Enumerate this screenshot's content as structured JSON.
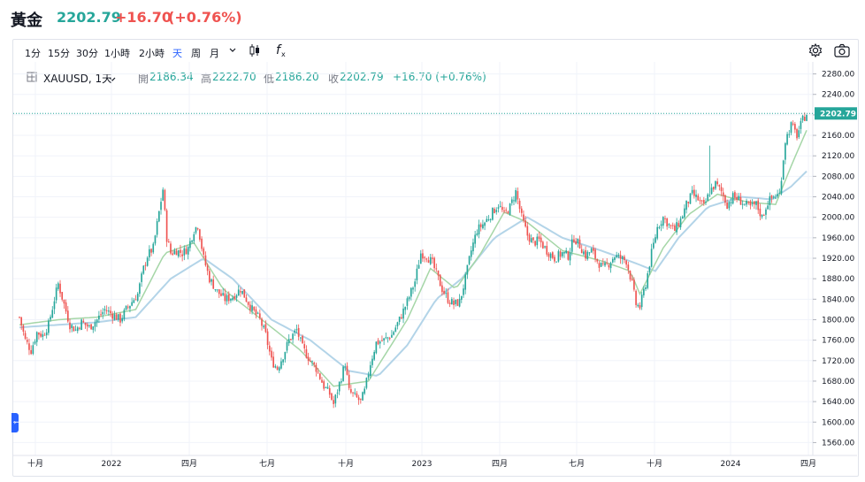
{
  "header": {
    "title": "黃金",
    "price": "2202.79",
    "change": "+16.70",
    "change_pct": "(+0.76%)"
  },
  "toolbar": {
    "intervals": [
      "1分",
      "15分",
      "30分",
      "1小時",
      "2小時",
      "天",
      "周",
      "月"
    ],
    "active_interval": "天",
    "dropdown_icon": "chevron-down-icon",
    "chart_type_icon": "candlestick-icon",
    "indicators_icon": "function-icon",
    "settings_icon": "gear-icon",
    "screenshot_icon": "camera-icon"
  },
  "legend": {
    "symbol": "XAUUSD, 1天",
    "open_label": "開",
    "open": "2186.34",
    "high_label": "高",
    "high": "2222.70",
    "low_label": "低",
    "low": "2186.20",
    "close_label": "收",
    "close": "2202.79",
    "change": "+16.70 (+0.76%)"
  },
  "colors": {
    "up": "#26a69a",
    "down": "#ef5350",
    "ma_fast": "#a5d6a7",
    "ma_slow": "#b3d4e8",
    "last_price_bg": "#26a69a",
    "grid": "#f0f3fa"
  },
  "chart_data": {
    "type": "candlestick",
    "symbol": "XAUUSD",
    "interval": "1天",
    "ylim": [
      1540,
      2300
    ],
    "y_ticks": [
      1560,
      1600,
      1640,
      1680,
      1720,
      1760,
      1800,
      1840,
      1880,
      1920,
      1960,
      2000,
      2040,
      2080,
      2120,
      2160,
      2200,
      2240,
      2280
    ],
    "x_ticks": [
      "十月",
      "2022",
      "四月",
      "七月",
      "十月",
      "2023",
      "四月",
      "七月",
      "十月",
      "2024",
      "四月"
    ],
    "last_price": 2202.79,
    "last_price_label": "2202.79",
    "grid": true,
    "close_path": [
      [
        0,
        1805
      ],
      [
        3,
        1760
      ],
      [
        6,
        1740
      ],
      [
        9,
        1775
      ],
      [
        12,
        1770
      ],
      [
        15,
        1790
      ],
      [
        18,
        1840
      ],
      [
        20,
        1870
      ],
      [
        23,
        1830
      ],
      [
        26,
        1790
      ],
      [
        29,
        1780
      ],
      [
        32,
        1795
      ],
      [
        36,
        1785
      ],
      [
        40,
        1800
      ],
      [
        44,
        1820
      ],
      [
        48,
        1810
      ],
      [
        52,
        1800
      ],
      [
        55,
        1820
      ],
      [
        58,
        1835
      ],
      [
        61,
        1850
      ],
      [
        64,
        1900
      ],
      [
        66,
        1925
      ],
      [
        69,
        1940
      ],
      [
        72,
        2010
      ],
      [
        74,
        2055
      ],
      [
        76,
        1960
      ],
      [
        78,
        1930
      ],
      [
        81,
        1935
      ],
      [
        84,
        1930
      ],
      [
        87,
        1940
      ],
      [
        90,
        1975
      ],
      [
        92,
        1985
      ],
      [
        95,
        1920
      ],
      [
        98,
        1880
      ],
      [
        102,
        1855
      ],
      [
        106,
        1840
      ],
      [
        110,
        1845
      ],
      [
        114,
        1860
      ],
      [
        117,
        1840
      ],
      [
        120,
        1820
      ],
      [
        124,
        1800
      ],
      [
        127,
        1770
      ],
      [
        130,
        1720
      ],
      [
        133,
        1705
      ],
      [
        136,
        1730
      ],
      [
        139,
        1760
      ],
      [
        143,
        1780
      ],
      [
        146,
        1745
      ],
      [
        150,
        1720
      ],
      [
        153,
        1705
      ],
      [
        157,
        1670
      ],
      [
        160,
        1655
      ],
      [
        162,
        1635
      ],
      [
        165,
        1675
      ],
      [
        168,
        1715
      ],
      [
        170,
        1660
      ],
      [
        173,
        1650
      ],
      [
        176,
        1640
      ],
      [
        178,
        1660
      ],
      [
        181,
        1715
      ],
      [
        184,
        1755
      ],
      [
        188,
        1760
      ],
      [
        192,
        1770
      ],
      [
        196,
        1800
      ],
      [
        200,
        1835
      ],
      [
        204,
        1875
      ],
      [
        207,
        1930
      ],
      [
        210,
        1925
      ],
      [
        213,
        1910
      ],
      [
        216,
        1880
      ],
      [
        218,
        1860
      ],
      [
        221,
        1840
      ],
      [
        224,
        1830
      ],
      [
        227,
        1835
      ],
      [
        230,
        1880
      ],
      [
        233,
        1935
      ],
      [
        236,
        1975
      ],
      [
        240,
        1990
      ],
      [
        244,
        2010
      ],
      [
        247,
        2025
      ],
      [
        250,
        2005
      ],
      [
        253,
        2020
      ],
      [
        256,
        2050
      ],
      [
        259,
        2000
      ],
      [
        262,
        1965
      ],
      [
        265,
        1950
      ],
      [
        268,
        1955
      ],
      [
        272,
        1935
      ],
      [
        276,
        1920
      ],
      [
        280,
        1930
      ],
      [
        283,
        1925
      ],
      [
        286,
        1960
      ],
      [
        289,
        1945
      ],
      [
        292,
        1925
      ],
      [
        295,
        1935
      ],
      [
        298,
        1915
      ],
      [
        301,
        1900
      ],
      [
        304,
        1910
      ],
      [
        307,
        1925
      ],
      [
        310,
        1920
      ],
      [
        313,
        1915
      ],
      [
        316,
        1870
      ],
      [
        318,
        1830
      ],
      [
        320,
        1825
      ],
      [
        323,
        1870
      ],
      [
        326,
        1930
      ],
      [
        329,
        1980
      ],
      [
        332,
        2000
      ],
      [
        335,
        1985
      ],
      [
        338,
        1975
      ],
      [
        341,
        1995
      ],
      [
        344,
        2025
      ],
      [
        347,
        2045
      ],
      [
        350,
        2035
      ],
      [
        353,
        2020
      ],
      [
        356,
        2050
      ],
      [
        359,
        2065
      ],
      [
        362,
        2050
      ],
      [
        365,
        2025
      ],
      [
        368,
        2040
      ],
      [
        371,
        2035
      ],
      [
        374,
        2025
      ],
      [
        377,
        2020
      ],
      [
        380,
        2025
      ],
      [
        383,
        2000
      ],
      [
        386,
        2030
      ],
      [
        389,
        2040
      ],
      [
        392,
        2045
      ],
      [
        395,
        2150
      ],
      [
        398,
        2180
      ],
      [
        401,
        2160
      ],
      [
        404,
        2190
      ],
      [
        406,
        2203
      ]
    ],
    "ma_fast_path": [
      [
        0,
        1790
      ],
      [
        20,
        1800
      ],
      [
        40,
        1805
      ],
      [
        60,
        1820
      ],
      [
        75,
        1930
      ],
      [
        90,
        1950
      ],
      [
        105,
        1860
      ],
      [
        125,
        1800
      ],
      [
        145,
        1740
      ],
      [
        162,
        1670
      ],
      [
        180,
        1680
      ],
      [
        200,
        1800
      ],
      [
        212,
        1900
      ],
      [
        225,
        1860
      ],
      [
        238,
        1930
      ],
      [
        250,
        2010
      ],
      [
        262,
        1990
      ],
      [
        280,
        1935
      ],
      [
        300,
        1915
      ],
      [
        315,
        1895
      ],
      [
        320,
        1850
      ],
      [
        332,
        1940
      ],
      [
        345,
        2005
      ],
      [
        360,
        2045
      ],
      [
        375,
        2030
      ],
      [
        390,
        2025
      ],
      [
        398,
        2100
      ],
      [
        406,
        2170
      ]
    ],
    "ma_slow_path": [
      [
        0,
        1785
      ],
      [
        20,
        1790
      ],
      [
        40,
        1795
      ],
      [
        60,
        1805
      ],
      [
        78,
        1880
      ],
      [
        95,
        1920
      ],
      [
        110,
        1880
      ],
      [
        130,
        1800
      ],
      [
        150,
        1760
      ],
      [
        170,
        1700
      ],
      [
        185,
        1690
      ],
      [
        200,
        1750
      ],
      [
        215,
        1840
      ],
      [
        228,
        1880
      ],
      [
        245,
        1960
      ],
      [
        262,
        2000
      ],
      [
        280,
        1960
      ],
      [
        300,
        1935
      ],
      [
        318,
        1910
      ],
      [
        328,
        1895
      ],
      [
        340,
        1960
      ],
      [
        355,
        2020
      ],
      [
        372,
        2040
      ],
      [
        388,
        2035
      ],
      [
        398,
        2060
      ],
      [
        406,
        2090
      ]
    ]
  }
}
